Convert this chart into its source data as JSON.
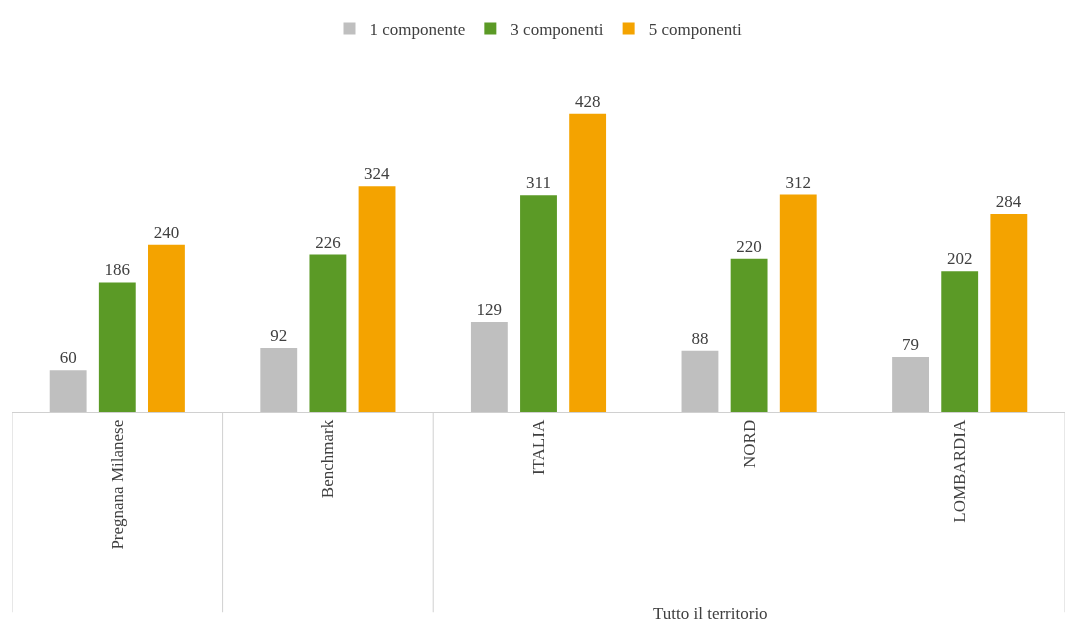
{
  "chart_data": {
    "type": "bar",
    "categories": [
      "Pregnana Milanese",
      "Benchmark",
      "ITALIA",
      "NORD",
      "LOMBARDIA"
    ],
    "series": [
      {
        "name": "1 componente",
        "color": "#bfbfbf",
        "values": [
          60,
          92,
          129,
          88,
          79
        ]
      },
      {
        "name": "3 componenti",
        "color": "#5b9a26",
        "values": [
          186,
          226,
          311,
          220,
          202
        ]
      },
      {
        "name": "5 componenti",
        "color": "#f4a300",
        "values": [
          240,
          324,
          428,
          312,
          284
        ]
      }
    ],
    "data_labels": true,
    "legend": "top",
    "annotations": [
      "Tutto il territorio"
    ]
  }
}
